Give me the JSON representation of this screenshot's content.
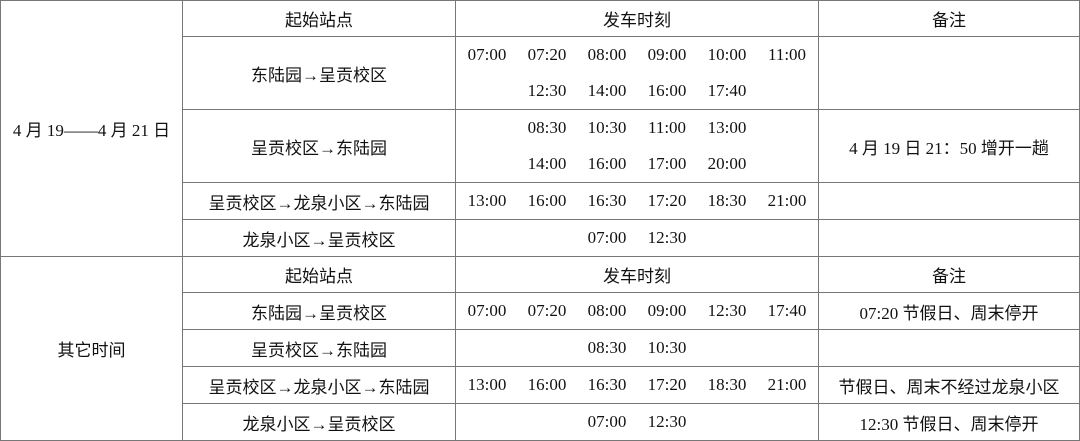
{
  "headers": {
    "route": "起始站点",
    "times": "发车时刻",
    "note": "备注"
  },
  "sections": [
    {
      "period": "4 月 19——4 月 21 日",
      "rows": [
        {
          "route": "东陆园→呈贡校区",
          "times": [
            [
              "07:00",
              "07:20",
              "08:00",
              "09:00",
              "10:00",
              "11:00"
            ],
            [
              "",
              "12:30",
              "14:00",
              "16:00",
              "17:40",
              ""
            ]
          ],
          "note": ""
        },
        {
          "route": "呈贡校区→东陆园",
          "times": [
            [
              "",
              "08:30",
              "10:30",
              "11:00",
              "13:00",
              ""
            ],
            [
              "",
              "14:00",
              "16:00",
              "17:00",
              "20:00",
              ""
            ]
          ],
          "note": "4 月 19 日 21：50 增开一趟"
        },
        {
          "route": "呈贡校区→龙泉小区→东陆园",
          "times": [
            [
              "13:00",
              "16:00",
              "16:30",
              "17:20",
              "18:30",
              "21:00"
            ]
          ],
          "note": ""
        },
        {
          "route": "龙泉小区→呈贡校区",
          "times": [
            [
              "",
              "",
              "07:00",
              "12:30",
              "",
              ""
            ]
          ],
          "note": ""
        }
      ]
    },
    {
      "period": "其它时间",
      "rows": [
        {
          "route": "东陆园→呈贡校区",
          "times": [
            [
              "07:00",
              "07:20",
              "08:00",
              "09:00",
              "12:30",
              "17:40"
            ]
          ],
          "note": "07:20 节假日、周末停开"
        },
        {
          "route": "呈贡校区→东陆园",
          "times": [
            [
              "",
              "",
              "08:30",
              "10:30",
              "",
              ""
            ]
          ],
          "note": ""
        },
        {
          "route": "呈贡校区→龙泉小区→东陆园",
          "times": [
            [
              "13:00",
              "16:00",
              "16:30",
              "17:20",
              "18:30",
              "21:00"
            ]
          ],
          "note": "节假日、周末不经过龙泉小区"
        },
        {
          "route": "龙泉小区→呈贡校区",
          "times": [
            [
              "",
              "",
              "07:00",
              "12:30",
              "",
              ""
            ]
          ],
          "note": "12:30 节假日、周末停开"
        }
      ]
    }
  ]
}
